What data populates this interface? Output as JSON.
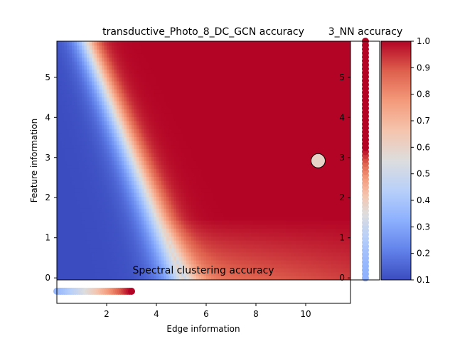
{
  "chart_data": {
    "type": "heatmap",
    "title": "transductive_Photo_8_DC_GCN accuracy",
    "right_title": "3_NN accuracy",
    "bottom_title": "Spectral clustering accuracy",
    "xlabel": "Edge information",
    "ylabel": "Feature information",
    "xlim": [
      0.0,
      11.8
    ],
    "ylim": [
      -0.05,
      5.9
    ],
    "xticks": [
      2,
      4,
      6,
      8,
      10
    ],
    "yticks": [
      0,
      1,
      2,
      3,
      4,
      5
    ],
    "colormap": "coolwarm",
    "colorbar": {
      "min": 0.1,
      "max": 1.0,
      "ticks": [
        "0.1",
        "0.2",
        "0.3",
        "0.4",
        "0.5",
        "0.6",
        "0.7",
        "0.8",
        "0.9",
        "1.0"
      ]
    },
    "heatmap_model": {
      "description": "accuracy rises from ~0.1 at low edge information to 1.0 beyond a boundary near edge=4.8 (y=0) to 1.3 (y=5.9)",
      "low_value": 0.1,
      "high_value": 1.0
    },
    "marker": {
      "x": 10.5,
      "y": 2.92,
      "value": 0.6
    },
    "knn_strip": {
      "y_min": 0.0,
      "y_max": 5.9,
      "y_max_value": 1.0,
      "y_min_value": 0.33
    },
    "spectral_strip": {
      "x_min": 0.0,
      "x_max": 3.0,
      "x_min_value": 0.35,
      "x_max_value": 1.0
    }
  }
}
